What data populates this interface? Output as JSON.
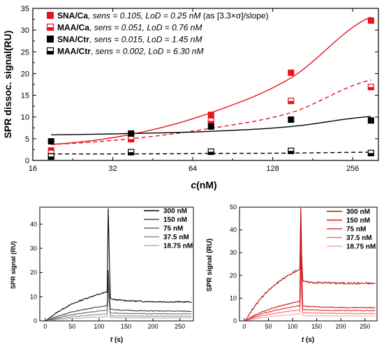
{
  "chart_data": [
    {
      "type": "scatter",
      "xlabel_italic": "c",
      "xlabel_rest": "(nM)",
      "ylabel": "SPR dissoc. signal(RU)",
      "x_scale": "log2",
      "xlim": [
        16,
        320
      ],
      "ylim": [
        0,
        35
      ],
      "xticks": [
        16,
        32,
        64,
        128,
        256
      ],
      "xtick_labels": [
        "16",
        "32",
        "64",
        "128",
        "256"
      ],
      "yticks": [
        0,
        5,
        10,
        15,
        20,
        25,
        30,
        35
      ],
      "ytick_labels": [
        "0",
        "5",
        "10",
        "15",
        "20",
        "25",
        "30",
        "35"
      ],
      "x": [
        18.75,
        37.5,
        75,
        150,
        300
      ],
      "legend_position": "top-left",
      "series": [
        {
          "name": "SNA/Ca",
          "sens_prefix": ", ",
          "sens_italic": "sens = 0.105, LoD = 0.25 nM",
          "suffix": " (as [3.3×σ]/slope)",
          "values": [
            2.3,
            5.2,
            10.5,
            20.2,
            32.2
          ],
          "fit": [
            3.7,
            6.0,
            11.0,
            19.0,
            33.0
          ],
          "color": "#e8141c",
          "marker": "filled",
          "line": "solid"
        },
        {
          "name": "MAA/Ca",
          "sens_prefix": ", ",
          "sens_italic": "sens = 0.051, LoD = 0.76 nM",
          "suffix": "",
          "values": [
            1.7,
            4.9,
            9.1,
            13.7,
            16.9
          ],
          "fit": [
            3.7,
            5.0,
            7.4,
            11.0,
            18.5
          ],
          "color": "#e8141c",
          "marker": "half",
          "line": "dashed"
        },
        {
          "name": "SNA/Ctr",
          "sens_prefix": ", ",
          "sens_italic": "sens = 0.015, LoD = 1.45 nM",
          "suffix": "",
          "values": [
            4.4,
            6.2,
            7.8,
            9.4,
            9.2
          ],
          "fit": [
            5.9,
            6.2,
            6.7,
            7.8,
            10.1
          ],
          "color": "#000000",
          "marker": "filled",
          "line": "solid"
        },
        {
          "name": "MAA/Ctr",
          "sens_prefix": ", ",
          "sens_italic": "sens = 0.002, LoD = 6.30 nM",
          "suffix": "",
          "values": [
            0.9,
            1.9,
            2.0,
            2.2,
            1.7
          ],
          "fit": [
            1.5,
            1.5,
            1.6,
            1.7,
            1.9
          ],
          "color": "#000000",
          "marker": "half",
          "line": "dashed"
        }
      ]
    },
    {
      "type": "line",
      "xlabel_italic": "t",
      "xlabel_rest": " (s)",
      "ylabel": "SPR signal (RU)",
      "xlim": [
        -10,
        275
      ],
      "ylim": [
        0,
        47
      ],
      "xticks": [
        0,
        50,
        100,
        150,
        200,
        250
      ],
      "yticks": [
        0,
        10,
        20,
        30,
        40
      ],
      "legend_position": "top-right",
      "series": [
        {
          "name": "300 nM",
          "color": "#000000",
          "plateau": 12.5,
          "end": 7.8,
          "spike": 46.5
        },
        {
          "name": "150 nM",
          "color": "#404040",
          "plateau": 6.6,
          "end": 4.0,
          "spike": 21
        },
        {
          "name": "75 nM",
          "color": "#6a6a6a",
          "plateau": 4.6,
          "end": 2.9,
          "spike": 16
        },
        {
          "name": "37.5 nM",
          "color": "#8f8f8f",
          "plateau": 3.0,
          "end": 1.9,
          "spike": 13
        },
        {
          "name": "18.75 nM",
          "color": "#b4b4b4",
          "plateau": 1.8,
          "end": 1.2,
          "spike": 12
        }
      ]
    },
    {
      "type": "line",
      "xlabel_italic": "t",
      "xlabel_rest": " (s)",
      "ylabel": "SPR signal (RU)",
      "xlim": [
        -10,
        275
      ],
      "ylim": [
        0,
        50
      ],
      "xticks": [
        0,
        50,
        100,
        150,
        200,
        250
      ],
      "yticks": [
        0,
        10,
        20,
        30,
        40,
        50
      ],
      "legend_position": "top-right",
      "series": [
        {
          "name": "300 nM",
          "color": "#b01010",
          "plateau": 24,
          "end": 16.5,
          "spike": 50
        },
        {
          "name": "150 nM",
          "color": "#d41818",
          "plateau": 9.0,
          "end": 5.8,
          "spike": 42
        },
        {
          "name": "75 nM",
          "color": "#e83030",
          "plateau": 7.0,
          "end": 4.5,
          "spike": 30
        },
        {
          "name": "37.5 nM",
          "color": "#f07070",
          "plateau": 5.0,
          "end": 3.2,
          "spike": 22
        },
        {
          "name": "18.75 nM",
          "color": "#f5a8a8",
          "plateau": 3.2,
          "end": 2.2,
          "spike": 16
        }
      ]
    }
  ]
}
